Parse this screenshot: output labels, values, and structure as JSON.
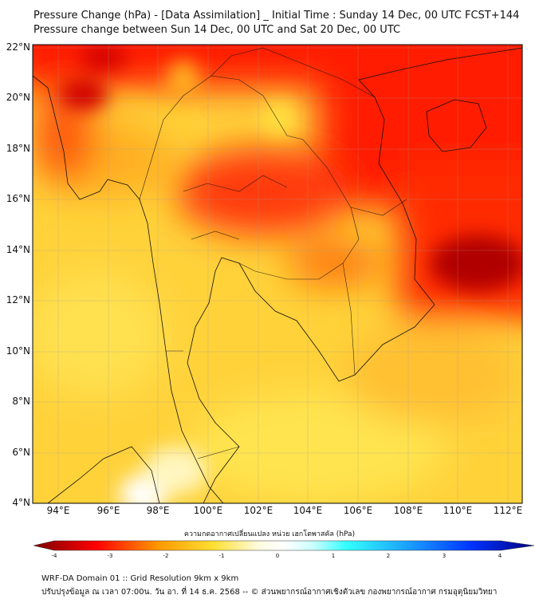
{
  "title": {
    "line1": "Pressure Change (hPa) - [Data Assimilation] _ Initial Time : Sunday 14 Dec, 00 UTC FCST+144",
    "line2": "Pressure change between Sun 14 Dec, 00 UTC and Sat 20 Dec, 00 UTC"
  },
  "axes": {
    "lat_labels": [
      "22°N",
      "20°N",
      "18°N",
      "16°N",
      "14°N",
      "12°N",
      "10°N",
      "8°N",
      "6°N",
      "4°N"
    ],
    "lon_labels": [
      "94°E",
      "96°E",
      "98°E",
      "100°E",
      "102°E",
      "104°E",
      "106°E",
      "108°E",
      "110°E",
      "112°E"
    ]
  },
  "colorbar": {
    "label": "ความกดอากาศเปลี่ยนแปลง หน่วย เฮกโตพาสคัล (hPa)",
    "ticks": [
      "-4",
      "-3",
      "-2",
      "-1",
      "0",
      "1",
      "2",
      "3",
      "4"
    ],
    "range": [
      -4,
      4
    ],
    "colors": [
      "#7a0000",
      "#ff0000",
      "#ff9900",
      "#ffe033",
      "#fffbe0",
      "#ffffff",
      "#c8ffff",
      "#33ffff",
      "#1a9fff",
      "#0033ff",
      "#000080"
    ]
  },
  "footer": {
    "line1": "WRF-DA Domain 01 :: Grid Resolution 9km x 9km",
    "line2": "ปรับปรุงข้อมูล ณ เวลา 07:00น. วัน อา. ที่ 14 ธ.ค. 2568 -- © ส่วนพยากรณ์อากาศเชิงตัวเลข กองพยากรณ์อากาศ กรมอุตุนิยมวิทยา"
  }
}
